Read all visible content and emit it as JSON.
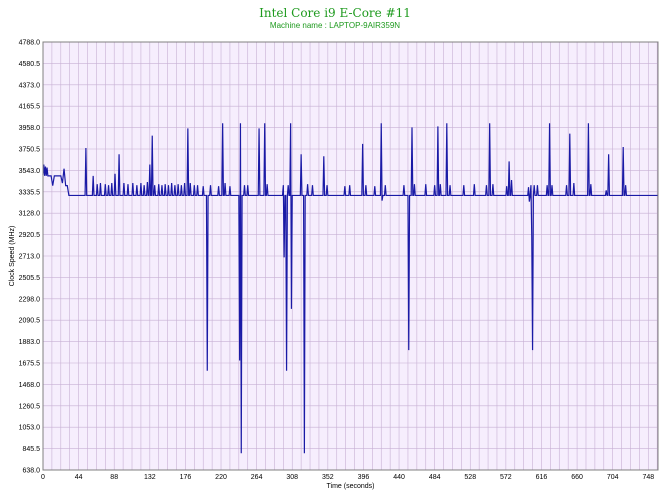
{
  "chart_data": {
    "type": "line",
    "title": "Intel Core i9 E-Core #11",
    "subtitle": "Machine name : LAPTOP-9AIR359N",
    "xlabel": "Time (seconds)",
    "ylabel": "Clock Speed (MHz)",
    "xlim": [
      0,
      760
    ],
    "ylim": [
      638.0,
      4788.0
    ],
    "xticks": [
      0,
      44,
      88,
      132,
      176,
      220,
      264,
      308,
      352,
      396,
      440,
      484,
      528,
      572,
      616,
      660,
      704,
      748
    ],
    "yticks": [
      "638.0",
      "845.5",
      "1053.0",
      "1260.5",
      "1468.0",
      "1675.5",
      "1883.0",
      "2090.5",
      "2298.0",
      "2505.5",
      "2713.0",
      "2920.5",
      "3128.0",
      "3335.5",
      "3543.0",
      "3750.5",
      "3958.0",
      "4165.5",
      "4373.0",
      "4580.5",
      "4788.0"
    ],
    "grid": true,
    "colors": {
      "line": "#1a1aa6",
      "plot_bg": "#f6eefd",
      "grid": "#c7b0d4",
      "title": "#1e9a1e"
    },
    "series": [
      {
        "values": [
          [
            0,
            3500
          ],
          [
            1,
            3600
          ],
          [
            2,
            3490
          ],
          [
            3,
            3580
          ],
          [
            4,
            3490
          ],
          [
            5,
            3570
          ],
          [
            6,
            3490
          ],
          [
            10,
            3490
          ],
          [
            12,
            3395
          ],
          [
            14,
            3490
          ],
          [
            18,
            3490
          ],
          [
            22,
            3490
          ],
          [
            24,
            3420
          ],
          [
            26,
            3560
          ],
          [
            28,
            3395
          ],
          [
            30,
            3395
          ],
          [
            32,
            3300
          ],
          [
            44,
            3300
          ],
          [
            52,
            3300
          ],
          [
            53,
            3760
          ],
          [
            54,
            3300
          ],
          [
            58,
            3300
          ],
          [
            61,
            3300
          ],
          [
            62,
            3490
          ],
          [
            63,
            3300
          ],
          [
            66,
            3300
          ],
          [
            67,
            3410
          ],
          [
            68,
            3300
          ],
          [
            70,
            3300
          ],
          [
            71,
            3420
          ],
          [
            72,
            3300
          ],
          [
            76,
            3300
          ],
          [
            77,
            3410
          ],
          [
            78,
            3300
          ],
          [
            80,
            3300
          ],
          [
            81,
            3400
          ],
          [
            82,
            3300
          ],
          [
            84,
            3300
          ],
          [
            85,
            3420
          ],
          [
            86,
            3300
          ],
          [
            88,
            3300
          ],
          [
            89,
            3510
          ],
          [
            90,
            3300
          ],
          [
            93,
            3300
          ],
          [
            94,
            3700
          ],
          [
            95,
            3300
          ],
          [
            99,
            3300
          ],
          [
            100,
            3420
          ],
          [
            101,
            3300
          ],
          [
            104,
            3300
          ],
          [
            105,
            3410
          ],
          [
            106,
            3300
          ],
          [
            110,
            3300
          ],
          [
            111,
            3420
          ],
          [
            112,
            3300
          ],
          [
            115,
            3300
          ],
          [
            116,
            3400
          ],
          [
            117,
            3300
          ],
          [
            120,
            3300
          ],
          [
            121,
            3420
          ],
          [
            122,
            3300
          ],
          [
            124,
            3300
          ],
          [
            125,
            3400
          ],
          [
            126,
            3300
          ],
          [
            128,
            3300
          ],
          [
            129,
            3430
          ],
          [
            130,
            3300
          ],
          [
            131,
            3300
          ],
          [
            132,
            3600
          ],
          [
            133,
            3300
          ],
          [
            134,
            3300
          ],
          [
            135,
            3880
          ],
          [
            136,
            3300
          ],
          [
            137,
            3300
          ],
          [
            138,
            3400
          ],
          [
            139,
            3300
          ],
          [
            142,
            3300
          ],
          [
            143,
            3410
          ],
          [
            144,
            3300
          ],
          [
            146,
            3300
          ],
          [
            147,
            3400
          ],
          [
            148,
            3300
          ],
          [
            150,
            3300
          ],
          [
            151,
            3410
          ],
          [
            152,
            3300
          ],
          [
            154,
            3300
          ],
          [
            155,
            3400
          ],
          [
            156,
            3300
          ],
          [
            158,
            3300
          ],
          [
            159,
            3420
          ],
          [
            160,
            3300
          ],
          [
            162,
            3300
          ],
          [
            163,
            3400
          ],
          [
            164,
            3300
          ],
          [
            166,
            3300
          ],
          [
            167,
            3410
          ],
          [
            168,
            3300
          ],
          [
            170,
            3300
          ],
          [
            171,
            3400
          ],
          [
            172,
            3300
          ],
          [
            174,
            3300
          ],
          [
            175,
            3420
          ],
          [
            176,
            3300
          ],
          [
            178,
            3300
          ],
          [
            179,
            3950
          ],
          [
            180,
            3300
          ],
          [
            181,
            3300
          ],
          [
            182,
            3420
          ],
          [
            183,
            3300
          ],
          [
            186,
            3300
          ],
          [
            187,
            3400
          ],
          [
            188,
            3300
          ],
          [
            190,
            3300
          ],
          [
            191,
            3400
          ],
          [
            192,
            3300
          ],
          [
            197,
            3300
          ],
          [
            198,
            3390
          ],
          [
            199,
            3300
          ],
          [
            202,
            3300
          ],
          [
            203,
            1600
          ],
          [
            204,
            3300
          ],
          [
            206,
            3300
          ],
          [
            207,
            3400
          ],
          [
            208,
            3300
          ],
          [
            216,
            3300
          ],
          [
            217,
            3390
          ],
          [
            218,
            3300
          ],
          [
            220,
            3300
          ],
          [
            221,
            3300
          ],
          [
            222,
            4000
          ],
          [
            223,
            3300
          ],
          [
            224,
            3300
          ],
          [
            225,
            3420
          ],
          [
            226,
            3300
          ],
          [
            230,
            3300
          ],
          [
            231,
            3390
          ],
          [
            232,
            3300
          ],
          [
            242,
            3300
          ],
          [
            243,
            1700
          ],
          [
            244,
            4000
          ],
          [
            245,
            800
          ],
          [
            246,
            3300
          ],
          [
            248,
            3300
          ],
          [
            249,
            3400
          ],
          [
            250,
            3300
          ],
          [
            252,
            3300
          ],
          [
            253,
            3400
          ],
          [
            254,
            3300
          ],
          [
            266,
            3300
          ],
          [
            267,
            3950
          ],
          [
            268,
            3300
          ],
          [
            273,
            3300
          ],
          [
            274,
            4000
          ],
          [
            275,
            3300
          ],
          [
            276,
            3300
          ],
          [
            277,
            3410
          ],
          [
            278,
            3300
          ],
          [
            296,
            3300
          ],
          [
            297,
            3400
          ],
          [
            298,
            2700
          ],
          [
            299,
            3300
          ],
          [
            300,
            3300
          ],
          [
            301,
            1600
          ],
          [
            302,
            3300
          ],
          [
            303,
            3400
          ],
          [
            304,
            3300
          ],
          [
            305,
            3300
          ],
          [
            306,
            4000
          ],
          [
            307,
            2200
          ],
          [
            308,
            3300
          ],
          [
            318,
            3300
          ],
          [
            319,
            3700
          ],
          [
            320,
            3300
          ],
          [
            322,
            3300
          ],
          [
            323,
            800
          ],
          [
            324,
            3300
          ],
          [
            326,
            3300
          ],
          [
            327,
            3410
          ],
          [
            328,
            3300
          ],
          [
            332,
            3300
          ],
          [
            333,
            3400
          ],
          [
            334,
            3300
          ],
          [
            346,
            3300
          ],
          [
            347,
            3680
          ],
          [
            348,
            3300
          ],
          [
            350,
            3300
          ],
          [
            351,
            3400
          ],
          [
            352,
            3300
          ],
          [
            372,
            3300
          ],
          [
            373,
            3390
          ],
          [
            374,
            3300
          ],
          [
            378,
            3300
          ],
          [
            379,
            3400
          ],
          [
            380,
            3300
          ],
          [
            394,
            3300
          ],
          [
            395,
            3800
          ],
          [
            396,
            3300
          ],
          [
            398,
            3300
          ],
          [
            399,
            3400
          ],
          [
            400,
            3300
          ],
          [
            409,
            3300
          ],
          [
            410,
            3390
          ],
          [
            411,
            3300
          ],
          [
            417,
            3300
          ],
          [
            418,
            4000
          ],
          [
            419,
            3250
          ],
          [
            420,
            3300
          ],
          [
            422,
            3300
          ],
          [
            423,
            3400
          ],
          [
            424,
            3300
          ],
          [
            445,
            3300
          ],
          [
            446,
            3400
          ],
          [
            447,
            3300
          ],
          [
            451,
            3300
          ],
          [
            452,
            1800
          ],
          [
            453,
            3300
          ],
          [
            455,
            3300
          ],
          [
            456,
            3960
          ],
          [
            457,
            3300
          ],
          [
            458,
            3300
          ],
          [
            459,
            3410
          ],
          [
            460,
            3300
          ],
          [
            472,
            3300
          ],
          [
            473,
            3410
          ],
          [
            474,
            3300
          ],
          [
            483,
            3300
          ],
          [
            484,
            3400
          ],
          [
            485,
            3300
          ],
          [
            487,
            3300
          ],
          [
            488,
            3970
          ],
          [
            489,
            3300
          ],
          [
            490,
            3300
          ],
          [
            491,
            3410
          ],
          [
            492,
            3300
          ],
          [
            498,
            3300
          ],
          [
            499,
            4000
          ],
          [
            500,
            3300
          ],
          [
            502,
            3300
          ],
          [
            503,
            3400
          ],
          [
            504,
            3300
          ],
          [
            519,
            3300
          ],
          [
            520,
            3400
          ],
          [
            521,
            3300
          ],
          [
            532,
            3300
          ],
          [
            533,
            3410
          ],
          [
            534,
            3300
          ],
          [
            547,
            3300
          ],
          [
            548,
            3400
          ],
          [
            549,
            3300
          ],
          [
            551,
            3300
          ],
          [
            552,
            4000
          ],
          [
            553,
            3300
          ],
          [
            555,
            3300
          ],
          [
            556,
            3410
          ],
          [
            557,
            3300
          ],
          [
            572,
            3300
          ],
          [
            573,
            3390
          ],
          [
            574,
            3300
          ],
          [
            575,
            3300
          ],
          [
            576,
            3630
          ],
          [
            577,
            3300
          ],
          [
            578,
            3300
          ],
          [
            579,
            3450
          ],
          [
            580,
            3300
          ],
          [
            599,
            3300
          ],
          [
            600,
            3380
          ],
          [
            601,
            3240
          ],
          [
            602,
            3300
          ],
          [
            603,
            3400
          ],
          [
            604,
            2900
          ],
          [
            605,
            1800
          ],
          [
            606,
            3300
          ],
          [
            607,
            3400
          ],
          [
            608,
            3300
          ],
          [
            610,
            3300
          ],
          [
            611,
            3400
          ],
          [
            612,
            3300
          ],
          [
            622,
            3300
          ],
          [
            623,
            3400
          ],
          [
            624,
            3300
          ],
          [
            625,
            3300
          ],
          [
            626,
            4000
          ],
          [
            627,
            3300
          ],
          [
            628,
            3300
          ],
          [
            629,
            3400
          ],
          [
            630,
            3300
          ],
          [
            646,
            3300
          ],
          [
            647,
            3400
          ],
          [
            648,
            3300
          ],
          [
            650,
            3300
          ],
          [
            651,
            3900
          ],
          [
            652,
            3300
          ],
          [
            655,
            3300
          ],
          [
            656,
            3420
          ],
          [
            657,
            3300
          ],
          [
            673,
            3300
          ],
          [
            674,
            4000
          ],
          [
            675,
            3300
          ],
          [
            676,
            3300
          ],
          [
            677,
            3410
          ],
          [
            678,
            3300
          ],
          [
            695,
            3300
          ],
          [
            696,
            3350
          ],
          [
            697,
            3300
          ],
          [
            698,
            3300
          ],
          [
            699,
            3700
          ],
          [
            700,
            3300
          ],
          [
            716,
            3300
          ],
          [
            717,
            3770
          ],
          [
            718,
            3300
          ],
          [
            719,
            3300
          ],
          [
            720,
            3400
          ],
          [
            721,
            3300
          ],
          [
            760,
            3300
          ]
        ]
      }
    ]
  }
}
